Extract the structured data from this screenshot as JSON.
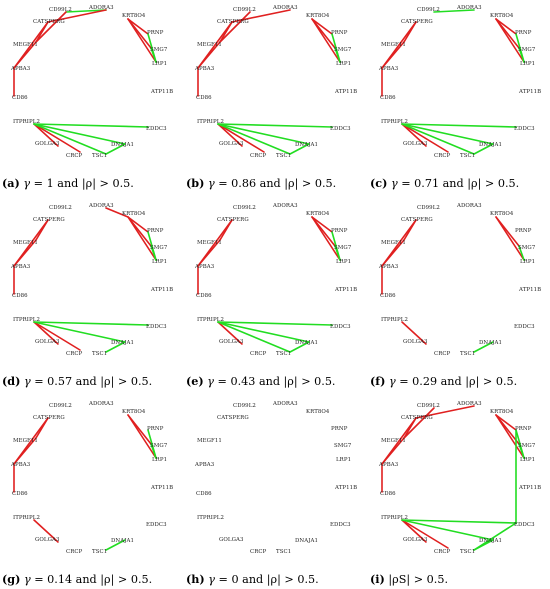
{
  "colors": {
    "positive": "#e02020",
    "negative": "#22dd22",
    "label": "#222222"
  },
  "panels": [
    {
      "id": "a",
      "letter": "(a)",
      "var": "γ",
      "eq": " = ",
      "value": "1",
      "cond": " and |ρ| > 0.5.",
      "edges": [
        [
          "CD99L2",
          "ADORA3",
          "neg"
        ],
        [
          "ADORA3",
          "CATSPERG",
          "pos"
        ],
        [
          "CD99L2",
          "MEGF11",
          "pos"
        ],
        [
          "CATSPERG",
          "MEGF11",
          "pos"
        ],
        [
          "CATSPERG",
          "APBA3",
          "pos"
        ],
        [
          "MEGF11",
          "APBA3",
          "pos"
        ],
        [
          "APBA3",
          "CD86",
          "pos"
        ],
        [
          "KRT8O4",
          "PRNP",
          "pos"
        ],
        [
          "KRT8O4",
          "SMG7",
          "pos"
        ],
        [
          "KRT8O4",
          "LRP1",
          "pos"
        ],
        [
          "PRNP",
          "LRP1",
          "neg"
        ],
        [
          "SMG7",
          "LRP1",
          "neg"
        ],
        [
          "ITPRIPL2",
          "GOLGA3",
          "pos"
        ],
        [
          "ITPRIPL2",
          "CRCP",
          "pos"
        ],
        [
          "ITPRIPL2",
          "EDDC3",
          "neg"
        ],
        [
          "ITPRIPL2",
          "DNAJA1",
          "neg"
        ],
        [
          "ITPRIPL2",
          "TSC1",
          "neg"
        ],
        [
          "TSC1",
          "DNAJA1",
          "neg"
        ]
      ]
    },
    {
      "id": "b",
      "letter": "(b)",
      "var": "γ",
      "eq": " = ",
      "value": "0.86",
      "cond": " and |ρ| > 0.5.",
      "edges": [
        [
          "ADORA3",
          "CATSPERG",
          "pos"
        ],
        [
          "CD99L2",
          "MEGF11",
          "pos"
        ],
        [
          "CATSPERG",
          "MEGF11",
          "pos"
        ],
        [
          "CATSPERG",
          "APBA3",
          "pos"
        ],
        [
          "MEGF11",
          "APBA3",
          "pos"
        ],
        [
          "APBA3",
          "CD86",
          "pos"
        ],
        [
          "KRT8O4",
          "PRNP",
          "pos"
        ],
        [
          "KRT8O4",
          "SMG7",
          "pos"
        ],
        [
          "KRT8O4",
          "LRP1",
          "pos"
        ],
        [
          "PRNP",
          "LRP1",
          "neg"
        ],
        [
          "SMG7",
          "LRP1",
          "neg"
        ],
        [
          "ITPRIPL2",
          "GOLGA3",
          "pos"
        ],
        [
          "ITPRIPL2",
          "CRCP",
          "pos"
        ],
        [
          "ITPRIPL2",
          "EDDC3",
          "neg"
        ],
        [
          "ITPRIPL2",
          "DNAJA1",
          "neg"
        ],
        [
          "ITPRIPL2",
          "TSC1",
          "neg"
        ],
        [
          "TSC1",
          "DNAJA1",
          "neg"
        ]
      ]
    },
    {
      "id": "c",
      "letter": "(c)",
      "var": "γ",
      "eq": " = ",
      "value": "0.71",
      "cond": " and |ρ| > 0.5.",
      "edges": [
        [
          "CD99L2",
          "ADORA3",
          "neg"
        ],
        [
          "CATSPERG",
          "MEGF11",
          "pos"
        ],
        [
          "CATSPERG",
          "APBA3",
          "pos"
        ],
        [
          "MEGF11",
          "APBA3",
          "pos"
        ],
        [
          "APBA3",
          "CD86",
          "pos"
        ],
        [
          "KRT8O4",
          "PRNP",
          "pos"
        ],
        [
          "KRT8O4",
          "SMG7",
          "pos"
        ],
        [
          "KRT8O4",
          "LRP1",
          "pos"
        ],
        [
          "PRNP",
          "LRP1",
          "neg"
        ],
        [
          "SMG7",
          "LRP1",
          "neg"
        ],
        [
          "ITPRIPL2",
          "GOLGA3",
          "pos"
        ],
        [
          "ITPRIPL2",
          "CRCP",
          "pos"
        ],
        [
          "ITPRIPL2",
          "EDDC3",
          "neg"
        ],
        [
          "ITPRIPL2",
          "DNAJA1",
          "neg"
        ],
        [
          "ITPRIPL2",
          "TSC1",
          "neg"
        ],
        [
          "TSC1",
          "DNAJA1",
          "neg"
        ]
      ]
    },
    {
      "id": "d",
      "letter": "(d)",
      "var": "γ",
      "eq": " = ",
      "value": "0.57",
      "cond": " and |ρ| > 0.5.",
      "edges": [
        [
          "ADORA3",
          "KRT8O4",
          "pos"
        ],
        [
          "CATSPERG",
          "MEGF11",
          "pos"
        ],
        [
          "CATSPERG",
          "APBA3",
          "pos"
        ],
        [
          "MEGF11",
          "APBA3",
          "pos"
        ],
        [
          "APBA3",
          "CD86",
          "pos"
        ],
        [
          "KRT8O4",
          "PRNP",
          "pos"
        ],
        [
          "KRT8O4",
          "SMG7",
          "pos"
        ],
        [
          "KRT8O4",
          "LRP1",
          "pos"
        ],
        [
          "PRNP",
          "LRP1",
          "neg"
        ],
        [
          "SMG7",
          "LRP1",
          "neg"
        ],
        [
          "ITPRIPL2",
          "GOLGA3",
          "pos"
        ],
        [
          "ITPRIPL2",
          "CRCP",
          "pos"
        ],
        [
          "ITPRIPL2",
          "EDDC3",
          "neg"
        ],
        [
          "ITPRIPL2",
          "DNAJA1",
          "neg"
        ],
        [
          "TSC1",
          "DNAJA1",
          "neg"
        ]
      ]
    },
    {
      "id": "e",
      "letter": "(e)",
      "var": "γ",
      "eq": " = ",
      "value": "0.43",
      "cond": " and |ρ| > 0.5.",
      "edges": [
        [
          "CATSPERG",
          "MEGF11",
          "pos"
        ],
        [
          "CATSPERG",
          "APBA3",
          "pos"
        ],
        [
          "MEGF11",
          "APBA3",
          "pos"
        ],
        [
          "APBA3",
          "CD86",
          "pos"
        ],
        [
          "KRT8O4",
          "PRNP",
          "pos"
        ],
        [
          "KRT8O4",
          "SMG7",
          "pos"
        ],
        [
          "KRT8O4",
          "LRP1",
          "pos"
        ],
        [
          "PRNP",
          "LRP1",
          "neg"
        ],
        [
          "SMG7",
          "LRP1",
          "neg"
        ],
        [
          "ITPRIPL2",
          "GOLGA3",
          "pos"
        ],
        [
          "ITPRIPL2",
          "EDDC3",
          "neg"
        ],
        [
          "ITPRIPL2",
          "DNAJA1",
          "neg"
        ],
        [
          "ITPRIPL2",
          "TSC1",
          "neg"
        ],
        [
          "TSC1",
          "DNAJA1",
          "neg"
        ]
      ]
    },
    {
      "id": "f",
      "letter": "(f)",
      "var": "γ",
      "eq": " = ",
      "value": "0.29",
      "cond": " and |ρ| > 0.5.",
      "edges": [
        [
          "CATSPERG",
          "MEGF11",
          "pos"
        ],
        [
          "CATSPERG",
          "APBA3",
          "pos"
        ],
        [
          "MEGF11",
          "APBA3",
          "pos"
        ],
        [
          "APBA3",
          "CD86",
          "pos"
        ],
        [
          "KRT8O4",
          "SMG7",
          "pos"
        ],
        [
          "KRT8O4",
          "LRP1",
          "pos"
        ],
        [
          "SMG7",
          "LRP1",
          "neg"
        ],
        [
          "ITPRIPL2",
          "GOLGA3",
          "pos"
        ],
        [
          "TSC1",
          "DNAJA1",
          "neg"
        ]
      ]
    },
    {
      "id": "g",
      "letter": "(g)",
      "var": "γ",
      "eq": " = ",
      "value": "0.14",
      "cond": " and |ρ| > 0.5.",
      "edges": [
        [
          "CATSPERG",
          "MEGF11",
          "pos"
        ],
        [
          "CATSPERG",
          "APBA3",
          "pos"
        ],
        [
          "MEGF11",
          "APBA3",
          "pos"
        ],
        [
          "APBA3",
          "CD86",
          "pos"
        ],
        [
          "KRT8O4",
          "SMG7",
          "pos"
        ],
        [
          "KRT8O4",
          "LRP1",
          "pos"
        ],
        [
          "PRNP",
          "LRP1",
          "neg"
        ],
        [
          "SMG7",
          "LRP1",
          "neg"
        ],
        [
          "ITPRIPL2",
          "GOLGA3",
          "pos"
        ],
        [
          "TSC1",
          "DNAJA1",
          "neg"
        ]
      ]
    },
    {
      "id": "h",
      "letter": "(h)",
      "var": "γ",
      "eq": " = ",
      "value": "0",
      "cond": " and |ρ| > 0.5.",
      "edges": []
    },
    {
      "id": "i",
      "letter": "(i)",
      "var": "",
      "eq": "",
      "value": "",
      "cond": "|ρS| > 0.5.",
      "edges": [
        [
          "ADORA3",
          "CATSPERG",
          "pos"
        ],
        [
          "CD99L2",
          "MEGF11",
          "pos"
        ],
        [
          "CATSPERG",
          "MEGF11",
          "pos"
        ],
        [
          "CATSPERG",
          "APBA3",
          "pos"
        ],
        [
          "MEGF11",
          "APBA3",
          "pos"
        ],
        [
          "APBA3",
          "CD86",
          "pos"
        ],
        [
          "KRT8O4",
          "PRNP",
          "pos"
        ],
        [
          "KRT8O4",
          "SMG7",
          "pos"
        ],
        [
          "KRT8O4",
          "LRP1",
          "pos"
        ],
        [
          "PRNP",
          "LRP1",
          "neg"
        ],
        [
          "SMG7",
          "LRP1",
          "neg"
        ],
        [
          "PRNP",
          "EDDC3",
          "neg"
        ],
        [
          "ITPRIPL2",
          "GOLGA3",
          "pos"
        ],
        [
          "ITPRIPL2",
          "CRCP",
          "pos"
        ],
        [
          "ITPRIPL2",
          "EDDC3",
          "neg"
        ],
        [
          "ITPRIPL2",
          "DNAJA1",
          "neg"
        ],
        [
          "TSC1",
          "DNAJA1",
          "neg"
        ],
        [
          "EDDC3",
          "TSC1",
          "neg"
        ]
      ]
    }
  ],
  "nodes": [
    {
      "name": "ADORA3"
    },
    {
      "name": "KRT8O4"
    },
    {
      "name": "PRNP"
    },
    {
      "name": "SMG7"
    },
    {
      "name": "LRP1"
    },
    {
      "name": "ATP11B"
    },
    {
      "name": "EDDC3"
    },
    {
      "name": "DNAJA1"
    },
    {
      "name": "TSC1"
    },
    {
      "name": "CRCP"
    },
    {
      "name": "GOLGA3"
    },
    {
      "name": "ITPRIPL2"
    },
    {
      "name": "CD86"
    },
    {
      "name": "APBA3"
    },
    {
      "name": "MEGF11"
    },
    {
      "name": "CATSPERG"
    },
    {
      "name": "CD99L2"
    }
  ]
}
